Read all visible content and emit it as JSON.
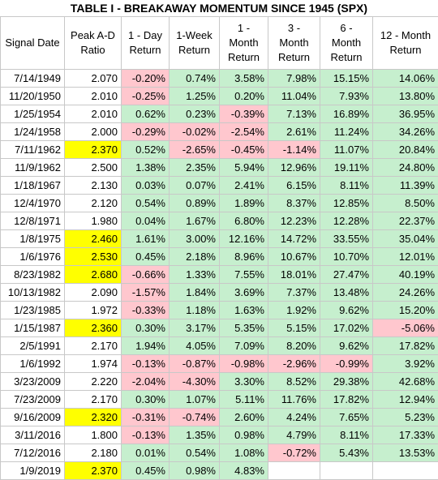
{
  "title": "TABLE I - BREAKAWAY MOMENTUM SINCE 1945 (SPX)",
  "headers": [
    [
      "Signal Date"
    ],
    [
      "Peak A-D",
      "Ratio"
    ],
    [
      "1 - Day",
      "Return"
    ],
    [
      "1-Week",
      "Return"
    ],
    [
      "1 -",
      "Month",
      "Return"
    ],
    [
      "3 -",
      "Month",
      "Return"
    ],
    [
      "6 -",
      "Month",
      "Return"
    ],
    [
      "12 - Month",
      "Return"
    ]
  ],
  "rows": [
    {
      "date": "7/14/1949",
      "ratio": "2.070",
      "hl": false,
      "r": [
        "-0.20%",
        "0.74%",
        "3.58%",
        "7.98%",
        "15.15%",
        "14.06%"
      ]
    },
    {
      "date": "11/20/1950",
      "ratio": "2.010",
      "hl": false,
      "r": [
        "-0.25%",
        "1.25%",
        "0.20%",
        "11.04%",
        "7.93%",
        "13.80%"
      ]
    },
    {
      "date": "1/25/1954",
      "ratio": "2.010",
      "hl": false,
      "r": [
        "0.62%",
        "0.23%",
        "-0.39%",
        "7.13%",
        "16.89%",
        "36.95%"
      ]
    },
    {
      "date": "1/24/1958",
      "ratio": "2.000",
      "hl": false,
      "r": [
        "-0.29%",
        "-0.02%",
        "-2.54%",
        "2.61%",
        "11.24%",
        "34.26%"
      ]
    },
    {
      "date": "7/11/1962",
      "ratio": "2.370",
      "hl": true,
      "r": [
        "0.52%",
        "-2.65%",
        "-0.45%",
        "-1.14%",
        "11.07%",
        "20.84%"
      ]
    },
    {
      "date": "11/9/1962",
      "ratio": "2.500",
      "hl": false,
      "r": [
        "1.38%",
        "2.35%",
        "5.94%",
        "12.96%",
        "19.11%",
        "24.80%"
      ]
    },
    {
      "date": "1/18/1967",
      "ratio": "2.130",
      "hl": false,
      "r": [
        "0.03%",
        "0.07%",
        "2.41%",
        "6.15%",
        "8.11%",
        "11.39%"
      ]
    },
    {
      "date": "12/4/1970",
      "ratio": "2.120",
      "hl": false,
      "r": [
        "0.54%",
        "0.89%",
        "1.89%",
        "8.37%",
        "12.85%",
        "8.50%"
      ]
    },
    {
      "date": "12/8/1971",
      "ratio": "1.980",
      "hl": false,
      "r": [
        "0.04%",
        "1.67%",
        "6.80%",
        "12.23%",
        "12.28%",
        "22.37%"
      ]
    },
    {
      "date": "1/8/1975",
      "ratio": "2.460",
      "hl": true,
      "r": [
        "1.61%",
        "3.00%",
        "12.16%",
        "14.72%",
        "33.55%",
        "35.04%"
      ]
    },
    {
      "date": "1/6/1976",
      "ratio": "2.530",
      "hl": true,
      "r": [
        "0.45%",
        "2.18%",
        "8.96%",
        "10.67%",
        "10.70%",
        "12.01%"
      ]
    },
    {
      "date": "8/23/1982",
      "ratio": "2.680",
      "hl": true,
      "r": [
        "-0.66%",
        "1.33%",
        "7.55%",
        "18.01%",
        "27.47%",
        "40.19%"
      ]
    },
    {
      "date": "10/13/1982",
      "ratio": "2.090",
      "hl": false,
      "r": [
        "-1.57%",
        "1.84%",
        "3.69%",
        "7.37%",
        "13.48%",
        "24.26%"
      ]
    },
    {
      "date": "1/23/1985",
      "ratio": "1.972",
      "hl": false,
      "r": [
        "-0.33%",
        "1.18%",
        "1.63%",
        "1.92%",
        "9.62%",
        "15.20%"
      ]
    },
    {
      "date": "1/15/1987",
      "ratio": "2.360",
      "hl": true,
      "r": [
        "0.30%",
        "3.17%",
        "5.35%",
        "5.15%",
        "17.02%",
        "-5.06%"
      ]
    },
    {
      "date": "2/5/1991",
      "ratio": "2.170",
      "hl": false,
      "r": [
        "1.94%",
        "4.05%",
        "7.09%",
        "8.20%",
        "9.62%",
        "17.82%"
      ]
    },
    {
      "date": "1/6/1992",
      "ratio": "1.974",
      "hl": false,
      "r": [
        "-0.13%",
        "-0.87%",
        "-0.98%",
        "-2.96%",
        "-0.99%",
        "3.92%"
      ]
    },
    {
      "date": "3/23/2009",
      "ratio": "2.220",
      "hl": false,
      "r": [
        "-2.04%",
        "-4.30%",
        "3.30%",
        "8.52%",
        "29.38%",
        "42.68%"
      ]
    },
    {
      "date": "7/23/2009",
      "ratio": "2.170",
      "hl": false,
      "r": [
        "0.30%",
        "1.07%",
        "5.11%",
        "11.76%",
        "17.82%",
        "12.94%"
      ]
    },
    {
      "date": "9/16/2009",
      "ratio": "2.320",
      "hl": true,
      "r": [
        "-0.31%",
        "-0.74%",
        "2.60%",
        "4.24%",
        "7.65%",
        "5.23%"
      ]
    },
    {
      "date": "3/11/2016",
      "ratio": "1.800",
      "hl": false,
      "r": [
        "-0.13%",
        "1.35%",
        "0.98%",
        "4.79%",
        "8.11%",
        "17.33%"
      ]
    },
    {
      "date": "7/12/2016",
      "ratio": "2.180",
      "hl": false,
      "r": [
        "0.01%",
        "0.54%",
        "1.08%",
        "-0.72%",
        "5.43%",
        "13.53%"
      ]
    },
    {
      "date": "1/9/2019",
      "ratio": "2.370",
      "hl": true,
      "r": [
        "0.45%",
        "0.98%",
        "4.83%",
        "",
        "",
        ""
      ]
    }
  ],
  "colors": {
    "positive": "#c6efce",
    "negative": "#ffc7ce",
    "highlight": "#ffff00"
  }
}
